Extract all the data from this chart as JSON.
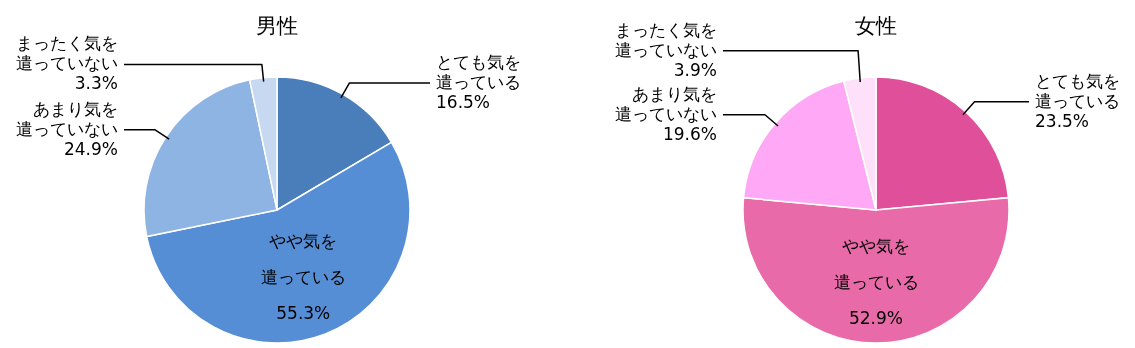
{
  "chart_data": [
    {
      "type": "pie",
      "title": "男性",
      "categories": [
        "とても気を遣っている",
        "やや気を遣っている",
        "あまり気を遣っていない",
        "まったく気を遣っていない"
      ],
      "values": [
        16.5,
        55.3,
        24.9,
        3.3
      ],
      "value_labels": [
        "16.5%",
        "55.3%",
        "24.9%",
        "3.3%"
      ],
      "colors": [
        "#4a7ebb",
        "#558ed5",
        "#8eb4e3",
        "#c6d9f1"
      ]
    },
    {
      "type": "pie",
      "title": "女性",
      "categories": [
        "とても気を遣っている",
        "やや気を遣っている",
        "あまり気を遣っていない",
        "まったく気を遣っていない"
      ],
      "values": [
        23.5,
        52.9,
        19.6,
        3.9
      ],
      "value_labels": [
        "23.5%",
        "52.9%",
        "19.6%",
        "3.9%"
      ],
      "colors": [
        "#e0509a",
        "#e96aa8",
        "#ffa8f5",
        "#ffe0fb"
      ]
    }
  ]
}
